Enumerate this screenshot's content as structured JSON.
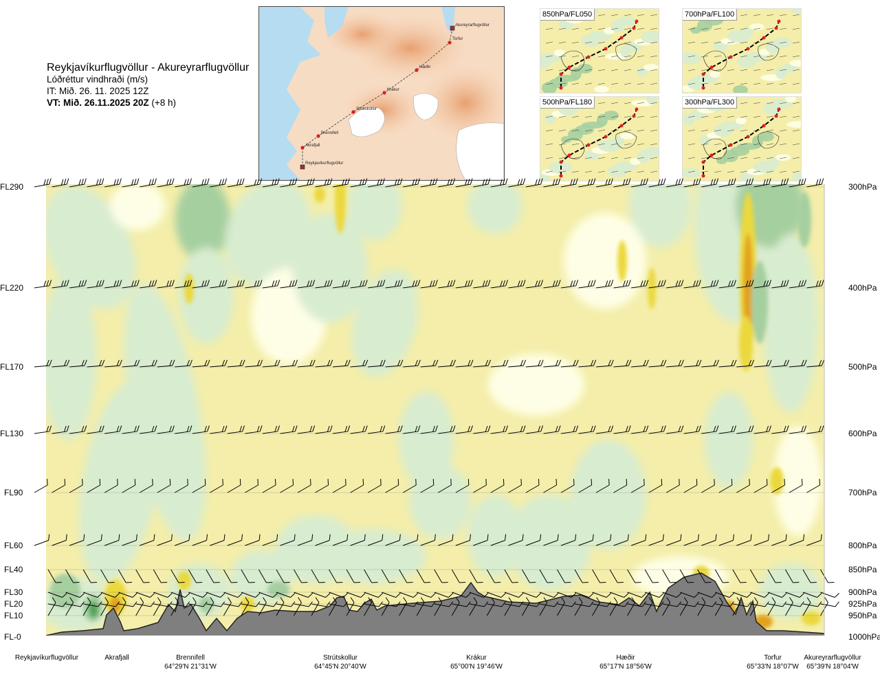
{
  "header": {
    "route": "Reykjavíkurflugvöllur - Akureyrarflugvöllur",
    "parameter": "Lóðréttur vindhraði (m/s)",
    "issue_time": "IT: Mið. 26. 11. 2025 12Z",
    "valid_time_bold": "VT: Mið. 26.11.2025 20Z",
    "valid_offset": "(+8 h)"
  },
  "route_map": {
    "points": [
      "Reykjavíkurflugvöllur",
      "Akrafjall",
      "Brennifell",
      "Strútskollur",
      "Krákur",
      "Hæðir",
      "Torfur",
      "Akureyrarflugvöllur"
    ]
  },
  "thumbnails": [
    {
      "label": "850hPa/FL050"
    },
    {
      "label": "700hPa/FL100"
    },
    {
      "label": "500hPa/FL180"
    },
    {
      "label": "300hPa/FL300"
    }
  ],
  "chart_data": {
    "type": "heatmap",
    "title": "Reykjavíkurflugvöllur - Akureyrarflugvöllur",
    "variable": "Lóðréttur vindhraði (m/s)",
    "x_axis": "route distance (Reykjavíkurflugvöllur → Akureyrarflugvöllur)",
    "left_axis_labels": [
      "FL290",
      "FL220",
      "FL170",
      "FL130",
      "FL90",
      "FL60",
      "FL40",
      "FL30",
      "FL20",
      "FL10",
      "FL-0"
    ],
    "right_axis_labels": [
      "300hPa",
      "400hPa",
      "500hPa",
      "600hPa",
      "700hPa",
      "800hPa",
      "850hPa",
      "900hPa",
      "925hPa",
      "950hPa",
      "1000hPa"
    ],
    "pressure_levels_hpa": [
      300,
      400,
      500,
      600,
      700,
      800,
      850,
      900,
      925,
      950,
      1000
    ],
    "waypoints": [
      {
        "name": "Reykjavíkurflugvöllur",
        "coord": ""
      },
      {
        "name": "Akrafjall",
        "coord": ""
      },
      {
        "name": "Brennifell",
        "coord": "64°29'N 21°31'W"
      },
      {
        "name": "Strútskollur",
        "coord": "64°45'N 20°40'W"
      },
      {
        "name": "Krákur",
        "coord": "65°00'N 19°46'W"
      },
      {
        "name": "Hæðir",
        "coord": "65°17'N 18°56'W"
      },
      {
        "name": "Torfur",
        "coord": "65°33'N 18°07'W"
      },
      {
        "name": "Akureyrarflugvöllur",
        "coord": "65°39'N 18°04'W"
      }
    ],
    "colors": {
      "strong_up": "#c85a14",
      "up2": "#e2a21e",
      "up1": "#ebd83c",
      "weak": "#f4eeaa",
      "neutral": "#fefee6",
      "down1": "#d8ecd0",
      "down2": "#a6cfa0",
      "down3": "#56a65e",
      "terrain": "#7f7f7f",
      "barb": "#000000"
    }
  }
}
